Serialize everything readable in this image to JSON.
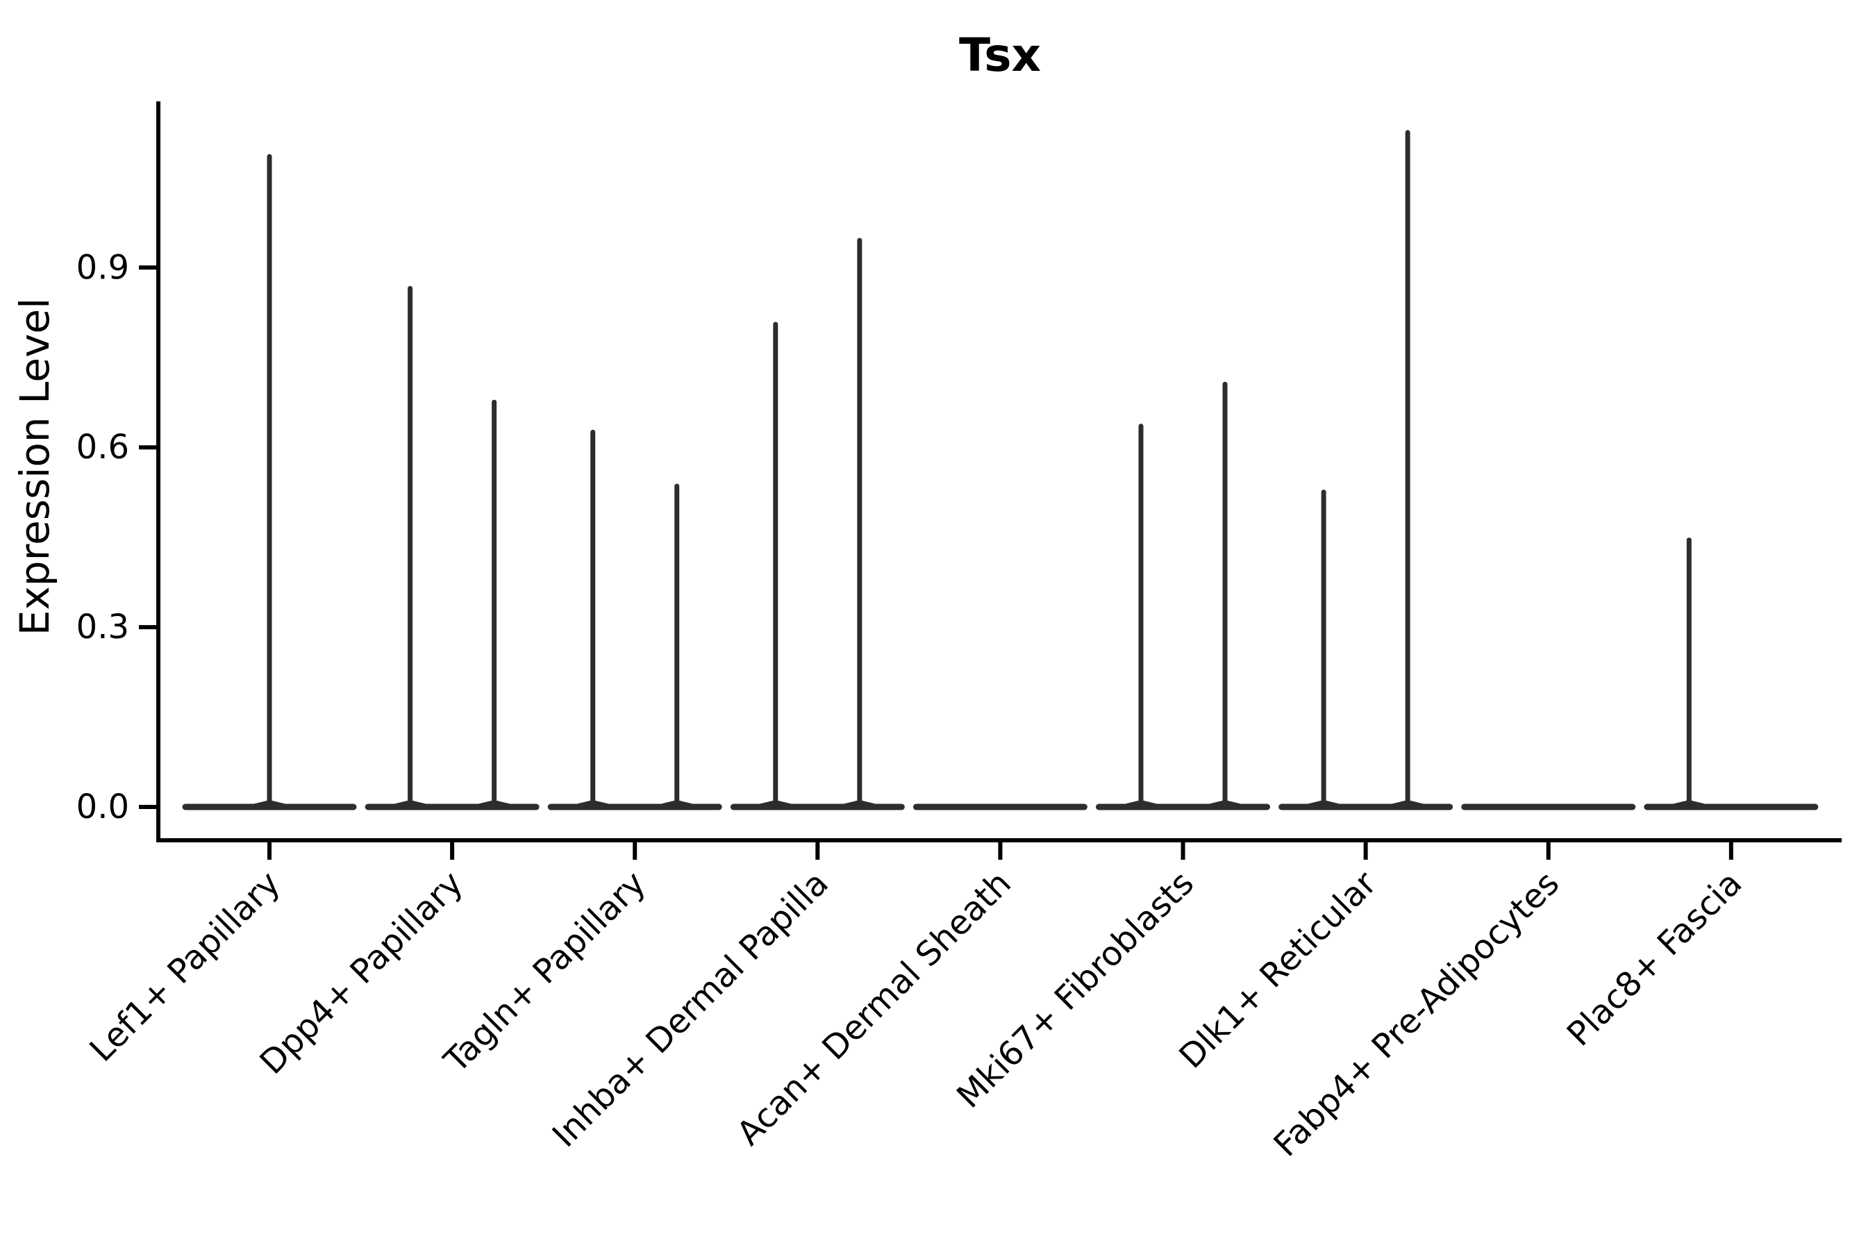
{
  "title": "Tsx",
  "chart_data": {
    "type": "violin",
    "title": "Tsx",
    "ylabel": "Expression Level",
    "xlabel": "",
    "ytick_labels": [
      "0.0",
      "0.3",
      "0.6",
      "0.9"
    ],
    "ytick_values": [
      0.0,
      0.3,
      0.6,
      0.9
    ],
    "ylim": [
      -0.06,
      1.17
    ],
    "grid": false,
    "legend_position": "none",
    "colors": {
      "violin_line": "#2d2d2d",
      "axis": "#000000",
      "text": "#000000",
      "background": "#ffffff"
    },
    "categories": [
      "Lef1+ Papillary",
      "Dpp4+ Papillary",
      "Tagln+ Papillary",
      "Inhba+ Dermal Papilla",
      "Acan+ Dermal Sheath",
      "Mki67+ Fibroblasts",
      "Dlk1+ Reticular",
      "Fabp4+ Pre-Adipocytes",
      "Plac8+ Fascia"
    ],
    "violins": [
      {
        "category": "Lef1+ Papillary",
        "spikes": [
          {
            "offset": 0.0,
            "value": 1.09
          }
        ]
      },
      {
        "category": "Dpp4+ Papillary",
        "spikes": [
          {
            "offset": -0.23,
            "value": 0.87
          },
          {
            "offset": 0.23,
            "value": 0.68
          }
        ]
      },
      {
        "category": "Tagln+ Papillary",
        "spikes": [
          {
            "offset": -0.23,
            "value": 0.63
          },
          {
            "offset": 0.23,
            "value": 0.54
          }
        ]
      },
      {
        "category": "Inhba+ Dermal Papilla",
        "spikes": [
          {
            "offset": -0.23,
            "value": 0.81
          },
          {
            "offset": 0.23,
            "value": 0.95
          }
        ]
      },
      {
        "category": "Acan+ Dermal Sheath",
        "spikes": []
      },
      {
        "category": "Mki67+ Fibroblasts",
        "spikes": [
          {
            "offset": -0.23,
            "value": 0.64
          },
          {
            "offset": 0.23,
            "value": 0.71
          }
        ]
      },
      {
        "category": "Dlk1+ Reticular",
        "spikes": [
          {
            "offset": -0.23,
            "value": 0.53
          },
          {
            "offset": 0.23,
            "value": 1.13
          }
        ]
      },
      {
        "category": "Fabp4+ Pre-Adipocytes",
        "spikes": []
      },
      {
        "category": "Plac8+ Fascia",
        "spikes": [
          {
            "offset": -0.23,
            "value": 0.45
          }
        ]
      }
    ]
  }
}
